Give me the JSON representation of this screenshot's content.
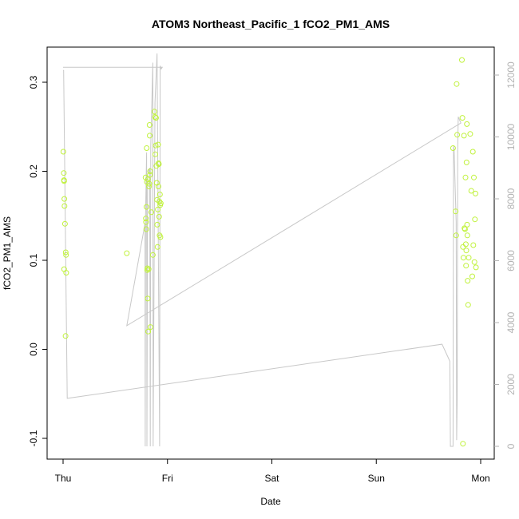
{
  "chart_data": {
    "type": "scatter",
    "title": "ATOM3 Northeast_Pacific_1 fCO2_PM1_AMS",
    "xlabel": "Date",
    "ylabel": "fCO2_PM1_AMS",
    "x_unit": "days since Thu 00:00",
    "x_range": [
      0,
      4
    ],
    "x_ticks": [
      {
        "value": 0,
        "label": "Thu"
      },
      {
        "value": 1,
        "label": "Fri"
      },
      {
        "value": 2,
        "label": "Sat"
      },
      {
        "value": 3,
        "label": "Sun"
      },
      {
        "value": 4,
        "label": "Mon"
      }
    ],
    "y_range": [
      -0.1,
      0.3
    ],
    "y_ticks": [
      -0.1,
      0.0,
      0.1,
      0.2,
      0.3
    ],
    "y2_range": [
      0,
      12000
    ],
    "y2_ticks": [
      0,
      2000,
      4000,
      6000,
      8000,
      10000,
      12000
    ],
    "grid": false,
    "legend": "none",
    "colors": {
      "points": "#c0f23c",
      "secondary_line": "#c8c8c8",
      "axis": "#000000",
      "secondary_axis": "#b3b3b3"
    },
    "series": [
      {
        "name": "fCO2_PM1_AMS",
        "axis": "left",
        "style": "points",
        "points": [
          [
            0.002,
            0.222
          ],
          [
            0.007,
            0.198
          ],
          [
            0.009,
            0.19
          ],
          [
            0.01,
            0.189
          ],
          [
            0.012,
            0.169
          ],
          [
            0.014,
            0.161
          ],
          [
            0.018,
            0.141
          ],
          [
            0.025,
            0.109
          ],
          [
            0.028,
            0.106
          ],
          [
            0.01,
            0.09
          ],
          [
            0.03,
            0.086
          ],
          [
            0.024,
            0.015
          ],
          [
            0.61,
            0.108
          ],
          [
            0.79,
            0.193
          ],
          [
            0.793,
            0.147
          ],
          [
            0.795,
            0.143
          ],
          [
            0.797,
            0.135
          ],
          [
            0.799,
            0.16
          ],
          [
            0.801,
            0.226
          ],
          [
            0.803,
            0.188
          ],
          [
            0.806,
            0.089
          ],
          [
            0.808,
            0.091
          ],
          [
            0.811,
            0.057
          ],
          [
            0.812,
            0.191
          ],
          [
            0.815,
            0.02
          ],
          [
            0.82,
            0.09
          ],
          [
            0.823,
            0.183
          ],
          [
            0.825,
            0.186
          ],
          [
            0.828,
            0.252
          ],
          [
            0.83,
            0.24
          ],
          [
            0.832,
            0.196
          ],
          [
            0.834,
            0.2
          ],
          [
            0.837,
            0.025
          ],
          [
            0.845,
            0.154
          ],
          [
            0.86,
            0.106
          ],
          [
            0.875,
            0.267
          ],
          [
            0.88,
            0.261
          ],
          [
            0.883,
            0.219
          ],
          [
            0.887,
            0.229
          ],
          [
            0.89,
            0.26
          ],
          [
            0.893,
            0.206
          ],
          [
            0.897,
            0.187
          ],
          [
            0.9,
            0.168
          ],
          [
            0.902,
            0.14
          ],
          [
            0.905,
            0.115
          ],
          [
            0.907,
            0.157
          ],
          [
            0.91,
            0.23
          ],
          [
            0.913,
            0.183
          ],
          [
            0.915,
            0.209
          ],
          [
            0.917,
            0.208
          ],
          [
            0.92,
            0.149
          ],
          [
            0.922,
            0.166
          ],
          [
            0.925,
            0.128
          ],
          [
            0.928,
            0.174
          ],
          [
            0.93,
            0.162
          ],
          [
            0.932,
            0.126
          ],
          [
            0.935,
            0.164
          ],
          [
            3.735,
            0.226
          ],
          [
            3.76,
            0.155
          ],
          [
            3.765,
            0.128
          ],
          [
            3.77,
            0.298
          ],
          [
            3.775,
            0.241
          ],
          [
            3.82,
            0.325
          ],
          [
            3.825,
            0.26
          ],
          [
            3.83,
            0.115
          ],
          [
            3.835,
            0.103
          ],
          [
            3.84,
            0.24
          ],
          [
            3.845,
            0.136
          ],
          [
            3.85,
            0.135
          ],
          [
            3.855,
            0.193
          ],
          [
            3.858,
            0.118
          ],
          [
            3.86,
            0.094
          ],
          [
            3.862,
            0.111
          ],
          [
            3.865,
            0.21
          ],
          [
            3.868,
            0.253
          ],
          [
            3.87,
            0.14
          ],
          [
            3.872,
            0.128
          ],
          [
            3.875,
            0.077
          ],
          [
            3.88,
            0.05
          ],
          [
            3.885,
            0.103
          ],
          [
            3.9,
            0.242
          ],
          [
            3.91,
            0.178
          ],
          [
            3.92,
            0.082
          ],
          [
            3.925,
            0.222
          ],
          [
            3.93,
            0.117
          ],
          [
            3.935,
            0.193
          ],
          [
            3.94,
            0.098
          ],
          [
            3.945,
            0.146
          ],
          [
            3.95,
            0.175
          ],
          [
            3.955,
            0.092
          ],
          [
            3.83,
            -0.106
          ]
        ]
      },
      {
        "name": "secondary",
        "axis": "right",
        "style": "line",
        "points": [
          [
            0.0,
            12150
          ],
          [
            0.005,
            12150
          ],
          [
            0.04,
            1550
          ],
          [
            3.63,
            3300
          ],
          [
            3.705,
            2750
          ],
          [
            3.71,
            0
          ],
          [
            3.735,
            0
          ],
          [
            3.74,
            9700
          ],
          [
            3.745,
            9600
          ],
          [
            3.765,
            7250
          ],
          [
            3.77,
            200
          ],
          [
            3.775,
            1500
          ],
          [
            3.78,
            9550
          ],
          [
            3.785,
            10650
          ],
          [
            3.81,
            10450
          ],
          [
            0.61,
            3900
          ],
          [
            0.785,
            7200
          ],
          [
            0.787,
            0
          ],
          [
            0.79,
            7500
          ],
          [
            0.8,
            9500
          ],
          [
            0.803,
            0
          ],
          [
            0.81,
            8800
          ],
          [
            0.83,
            9000
          ],
          [
            0.835,
            0
          ],
          [
            0.84,
            9700
          ],
          [
            0.86,
            12400
          ],
          [
            0.863,
            0
          ],
          [
            0.88,
            11100
          ],
          [
            0.9,
            12700
          ],
          [
            0.925,
            0
          ],
          [
            0.93,
            12300
          ],
          [
            0.94,
            12200
          ],
          [
            0.95,
            12250
          ],
          [
            0.0,
            12250
          ]
        ]
      }
    ]
  }
}
